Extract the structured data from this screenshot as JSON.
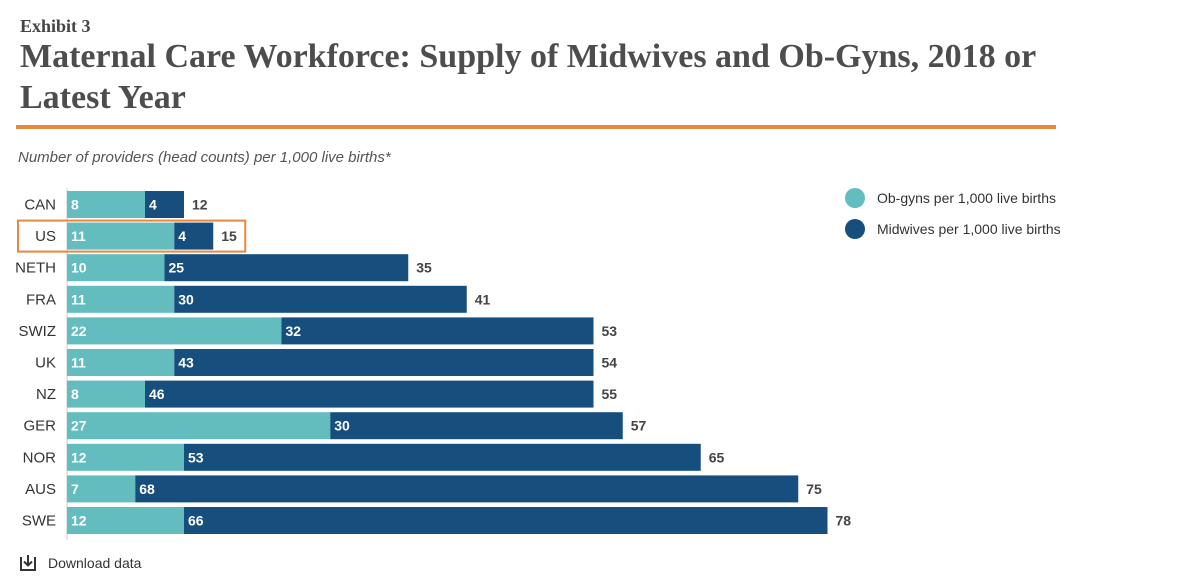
{
  "header": {
    "exhibit": "Exhibit 3",
    "title": "Maternal Care Workforce: Supply of Midwives and Ob-Gyns, 2018 or Latest Year",
    "subtitle": "Number of providers (head counts) per 1,000 live births*"
  },
  "colors": {
    "accent_rule": "#e8873e",
    "obgyn": "#63bcbe",
    "midwives": "#164f7e",
    "highlight": "#e8873e"
  },
  "chart_data": {
    "type": "bar",
    "orientation": "horizontal",
    "stacked": true,
    "categories": [
      "CAN",
      "US",
      "NETH",
      "FRA",
      "SWIZ",
      "UK",
      "NZ",
      "GER",
      "NOR",
      "AUS",
      "SWE"
    ],
    "series": [
      {
        "name": "Ob-gyns per 1,000 live births",
        "values": [
          8,
          11,
          10,
          11,
          22,
          11,
          8,
          27,
          12,
          7,
          12
        ]
      },
      {
        "name": "Midwives per 1,000 live births",
        "values": [
          4,
          4,
          25,
          30,
          32,
          43,
          46,
          30,
          53,
          68,
          66
        ]
      }
    ],
    "totals": [
      12,
      15,
      35,
      41,
      53,
      54,
      55,
      57,
      65,
      75,
      78
    ],
    "highlighted_category": "US",
    "legend_position": "top-right",
    "grid": false
  },
  "legend": {
    "items": [
      {
        "label": "Ob-gyns per 1,000 live births"
      },
      {
        "label": "Midwives per 1,000 live births"
      }
    ]
  },
  "footer": {
    "download_label": "Download data",
    "download_icon": "download-icon"
  }
}
